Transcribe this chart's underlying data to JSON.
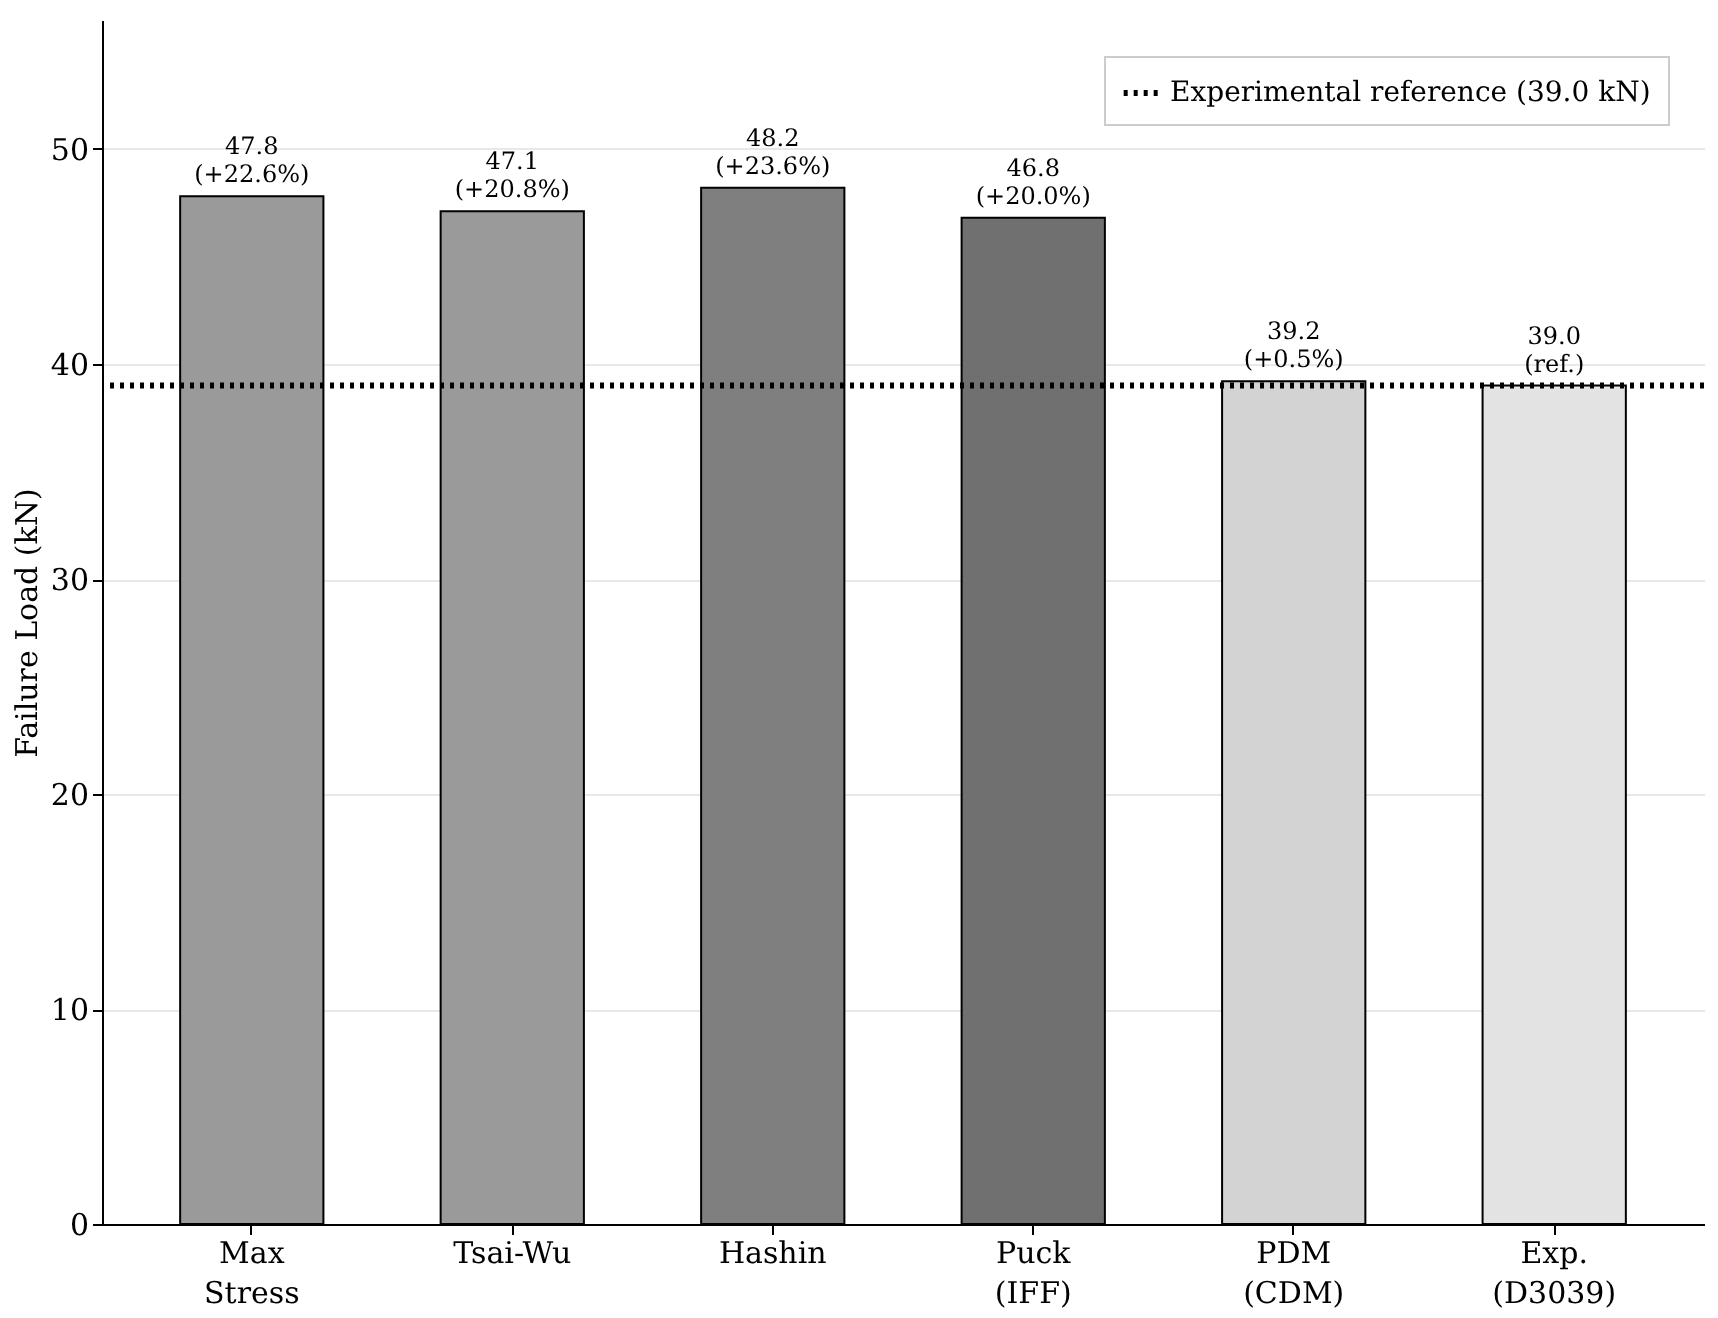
{
  "chart_data": {
    "type": "bar",
    "ylabel": "Failure Load (kN)",
    "categories": [
      "Max\nStress",
      "Tsai-Wu",
      "Hashin",
      "Puck\n(IFF)",
      "PDM\n(CDM)",
      "Exp.\n(D3039)"
    ],
    "values": [
      47.8,
      47.1,
      48.2,
      46.8,
      39.2,
      39.0
    ],
    "colors": [
      "#9a9a9a",
      "#9a9a9a",
      "#7f7f7f",
      "#707070",
      "#d3d3d3",
      "#e3e3e3"
    ],
    "value_labels": [
      "47.8\n(+22.6%)",
      "47.1\n(+20.8%)",
      "48.2\n(+23.6%)",
      "46.8\n(+20.0%)",
      "39.2\n(+0.5%)",
      "39.0\n(ref.)"
    ],
    "ylim": [
      0,
      56
    ],
    "yticks": [
      0,
      10,
      20,
      30,
      40,
      50
    ],
    "grid": "y",
    "legend": "top right",
    "ref_lines": [
      {
        "axis": "y",
        "value": 39.0,
        "label": "Experimental reference (39.0 kN)",
        "color": "#000000",
        "line_style": "dotted"
      }
    ]
  }
}
